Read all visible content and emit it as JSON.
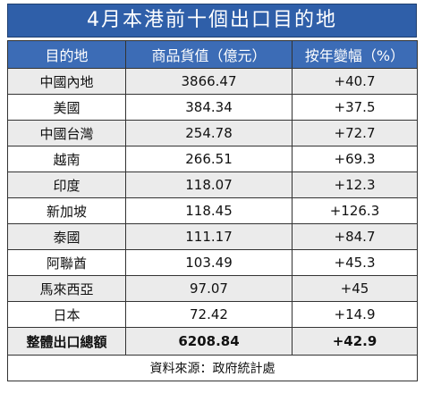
{
  "header": {
    "title": "4月本港前十個出口目的地"
  },
  "table": {
    "columns": [
      "目的地",
      "商品貨值（億元）",
      "按年變幅（%）"
    ],
    "rows": [
      [
        "中國內地",
        "3866.47",
        "+40.7"
      ],
      [
        "美國",
        "384.34",
        "+37.5"
      ],
      [
        "中國台灣",
        "254.78",
        "+72.7"
      ],
      [
        "越南",
        "266.51",
        "+69.3"
      ],
      [
        "印度",
        "118.07",
        "+12.3"
      ],
      [
        "新加坡",
        "118.45",
        "+126.3"
      ],
      [
        "泰國",
        "111.17",
        "+84.7"
      ],
      [
        "阿聯酋",
        "103.49",
        "+45.3"
      ],
      [
        "馬來西亞",
        "97.07",
        "+45"
      ],
      [
        "日本",
        "72.42",
        "+14.9"
      ]
    ],
    "total": [
      "整體出口總額",
      "6208.84",
      "+42.9"
    ]
  },
  "footer": {
    "source": "資料來源：政府統計處"
  }
}
